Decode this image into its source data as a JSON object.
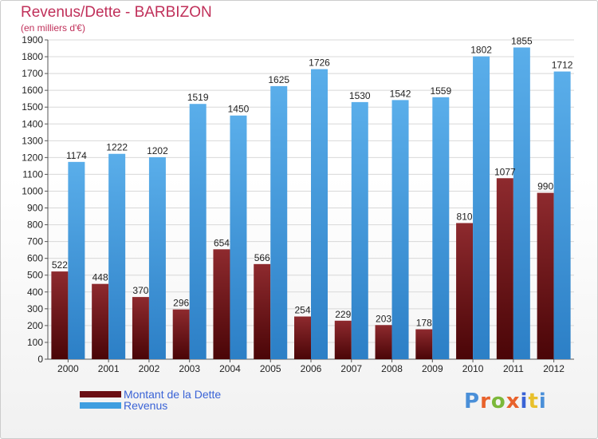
{
  "title": "Revenus/Dette - BARBIZON",
  "subtitle": "(en milliers d'€)",
  "logo": {
    "text": "Proxiti",
    "colors": [
      "#4a8fd8",
      "#e8622c",
      "#7cb83a",
      "#e8622c",
      "#3a63d6",
      "#e8c02c",
      "#4a8fd8"
    ]
  },
  "legend": [
    {
      "label": "Montant de la Dette",
      "color": "#6b0f14"
    },
    {
      "label": "Revenus",
      "color": "#3f9ee0"
    }
  ],
  "chart_data": {
    "type": "bar",
    "title": "Revenus/Dette - BARBIZON",
    "subtitle": "(en milliers d'€)",
    "categories": [
      "2000",
      "2001",
      "2002",
      "2003",
      "2004",
      "2005",
      "2006",
      "2007",
      "2008",
      "2009",
      "2010",
      "2011",
      "2012"
    ],
    "series": [
      {
        "name": "Montant de la Dette",
        "color": "#7a1a1d",
        "values": [
          522,
          448,
          370,
          296,
          654,
          566,
          254,
          229,
          203,
          178,
          810,
          1077,
          990
        ],
        "labels": [
          "522",
          "448",
          "370",
          "296",
          "654",
          "566",
          "254",
          "229",
          "203",
          "178",
          "810",
          "1077",
          "990"
        ]
      },
      {
        "name": "Revenus",
        "color": "#3f9ee0",
        "values": [
          1174,
          1222,
          1202,
          1519,
          1450,
          1625,
          1726,
          1530,
          1542,
          1559,
          1802,
          1855,
          1712
        ],
        "labels": [
          "1174",
          "1222",
          "1202",
          "1519",
          "1450",
          "1625",
          "1726",
          "1530",
          "1542",
          "1559",
          "1802",
          "1855",
          "1712"
        ]
      }
    ],
    "ylim": [
      0,
      1900
    ],
    "ytick_step": 100,
    "grid": true,
    "legend_position": "bottom-left"
  }
}
